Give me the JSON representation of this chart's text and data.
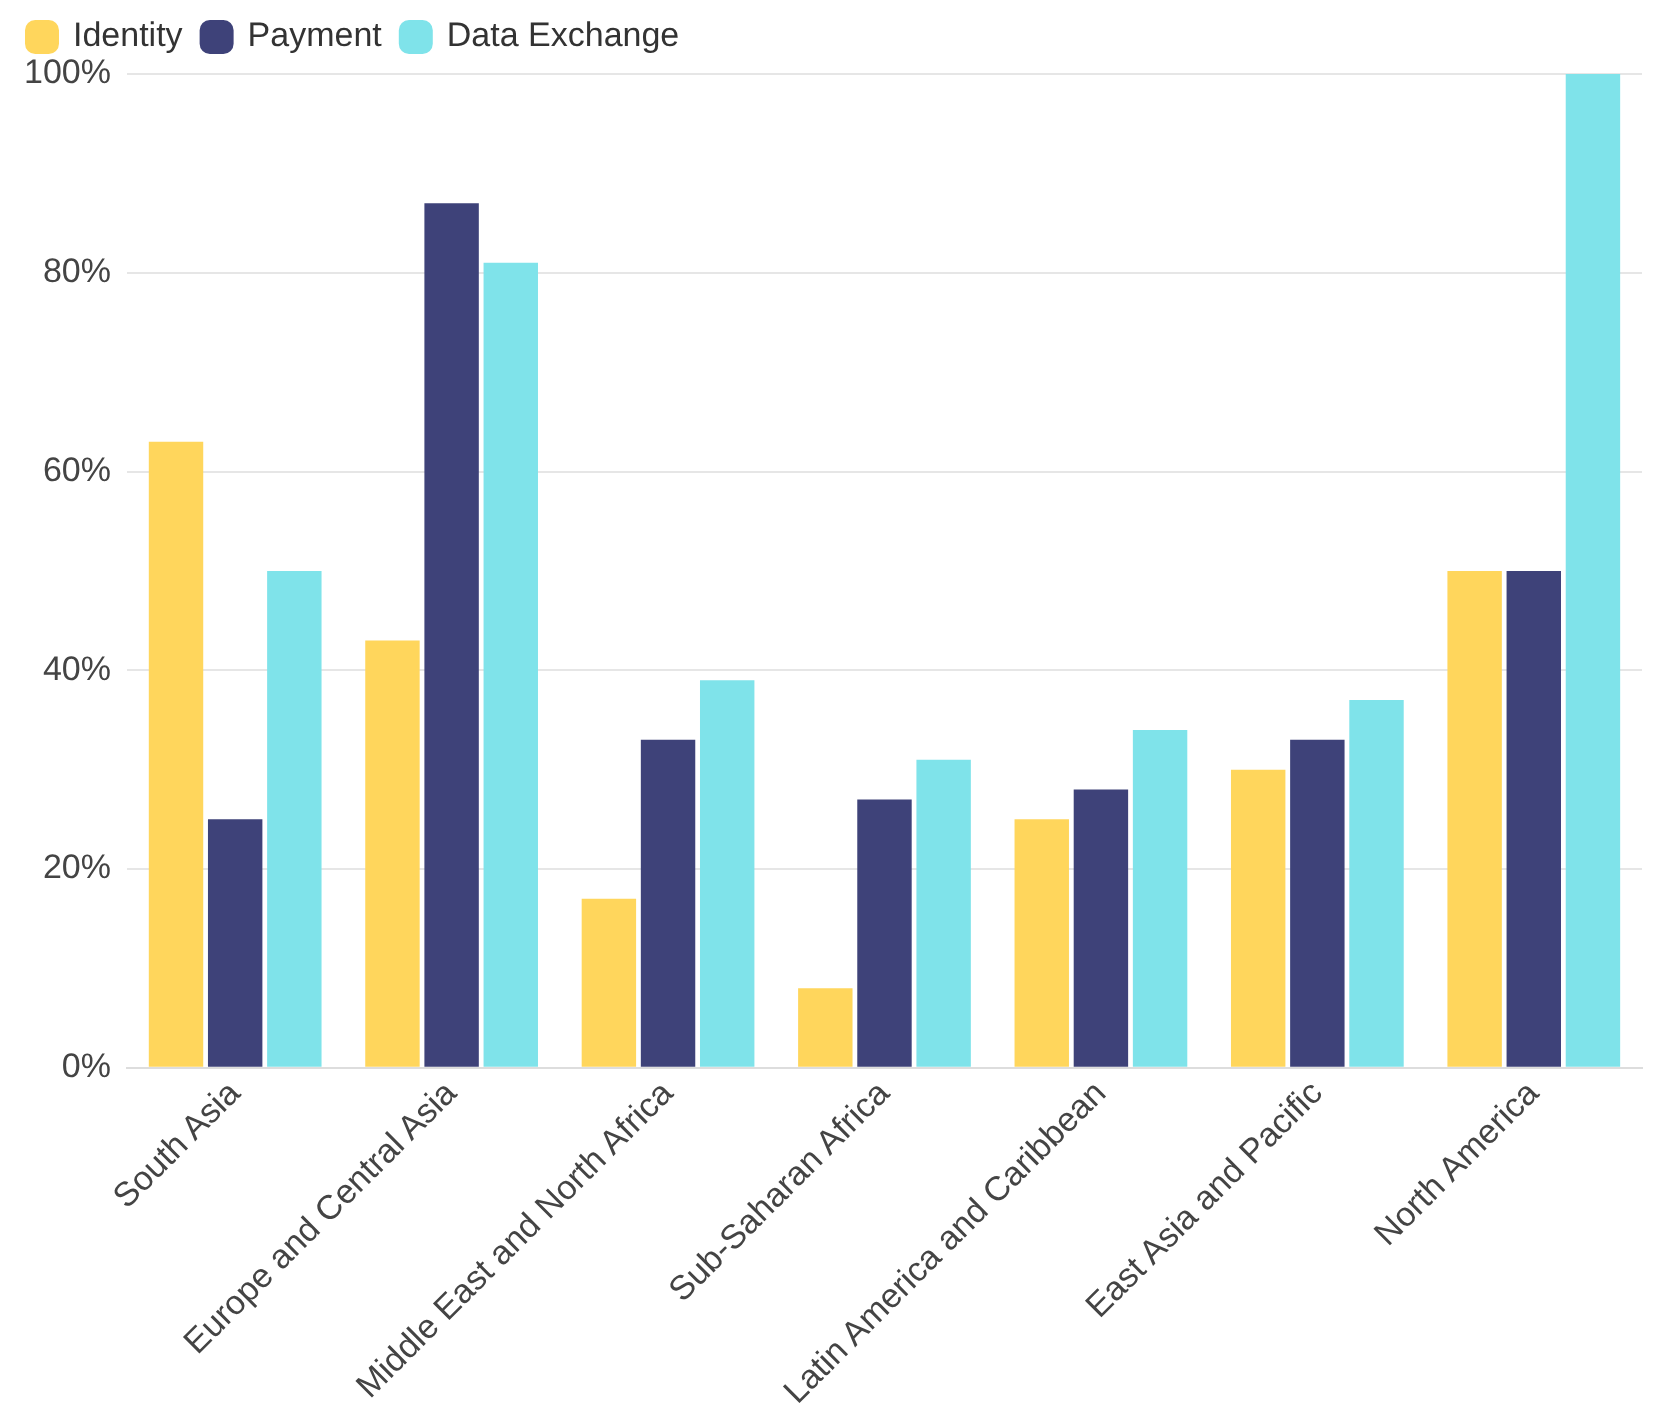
{
  "chart_data": {
    "type": "bar",
    "categories": [
      "South Asia",
      "Europe and Central Asia",
      "Middle East and North Africa",
      "Sub-Saharan Africa",
      "Latin America and Caribbean",
      "East Asia and Pacific",
      "North America"
    ],
    "series": [
      {
        "name": "Identity",
        "color": "#ffd65c",
        "values": [
          63,
          43,
          17,
          8,
          25,
          30,
          50
        ]
      },
      {
        "name": "Payment",
        "color": "#3e4279",
        "values": [
          25,
          87,
          33,
          27,
          28,
          33,
          50
        ]
      },
      {
        "name": "Data Exchange",
        "color": "#7fe3ea",
        "values": [
          50,
          81,
          39,
          31,
          34,
          37,
          100
        ]
      }
    ],
    "ylim": [
      0,
      100
    ],
    "yticks": [
      {
        "value": 0,
        "label": "0%"
      },
      {
        "value": 20,
        "label": "20%"
      },
      {
        "value": 40,
        "label": "40%"
      },
      {
        "value": 60,
        "label": "60%"
      },
      {
        "value": 80,
        "label": "80%"
      },
      {
        "value": 100,
        "label": "100%"
      }
    ],
    "grid": "y",
    "legend": "top left"
  }
}
